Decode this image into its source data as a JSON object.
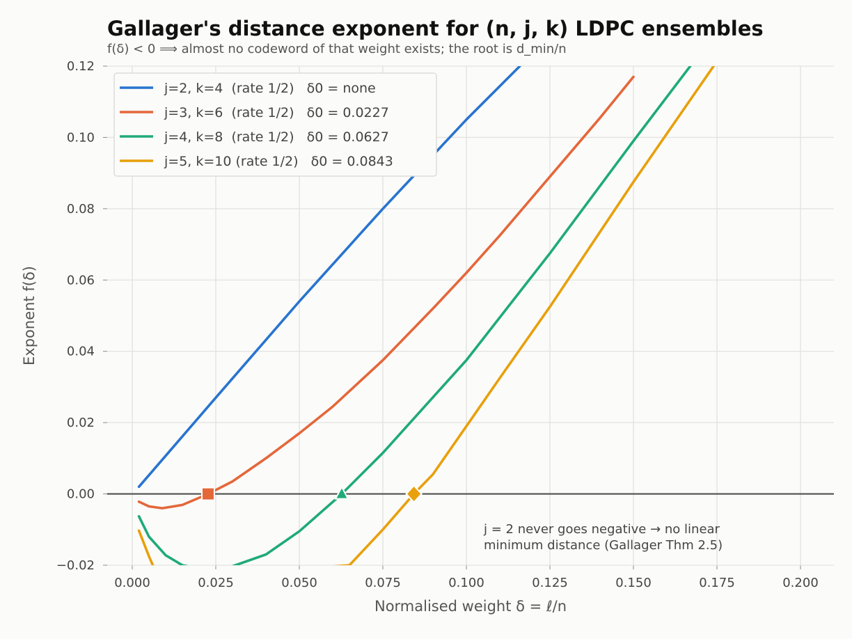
{
  "chart_data": {
    "type": "line",
    "title": "Gallager's distance exponent for (n, j, k) LDPC ensembles",
    "subtitle": "f(δ) < 0 ⟹ almost no codeword of that weight exists; the root is d_min/n",
    "xlabel": "Normalised weight  δ = ℓ/n",
    "ylabel": "Exponent  f(δ)",
    "xlim": [
      -0.0075,
      0.21
    ],
    "ylim": [
      -0.02,
      0.12
    ],
    "xticks": [
      "0.000",
      "0.025",
      "0.050",
      "0.075",
      "0.100",
      "0.125",
      "0.150",
      "0.175",
      "0.200"
    ],
    "yticks": [
      "−0.02",
      "0.00",
      "0.02",
      "0.04",
      "0.06",
      "0.08",
      "0.10",
      "0.12"
    ],
    "grid": true,
    "legend_position": "top-left",
    "series": [
      {
        "name": "j=2, k=4  (rate 1/2)   δ0 = none",
        "color": "#2874d0",
        "x": [
          0.002,
          0.025,
          0.05,
          0.075,
          0.1,
          0.116
        ],
        "y": [
          0.002,
          0.027,
          0.054,
          0.08,
          0.105,
          0.12
        ]
      },
      {
        "name": "j=3, k=6  (rate 1/2)   δ0 = 0.0227",
        "color": "#e4673a",
        "x": [
          0.002,
          0.005,
          0.009,
          0.015,
          0.0227,
          0.03,
          0.04,
          0.05,
          0.06,
          0.075,
          0.09,
          0.1,
          0.11,
          0.125,
          0.14,
          0.15
        ],
        "y": [
          -0.0022,
          -0.0035,
          -0.004,
          -0.0031,
          0.0,
          0.0035,
          0.01,
          0.017,
          0.0245,
          0.0375,
          0.052,
          0.062,
          0.0725,
          0.089,
          0.1055,
          0.117
        ],
        "marker": "square",
        "root": 0.0227
      },
      {
        "name": "j=4, k=8  (rate 1/2)   δ0 = 0.0627",
        "color": "#1faa7a",
        "x": [
          0.002,
          0.005,
          0.01,
          0.015,
          0.02,
          0.025,
          0.03,
          0.04,
          0.05,
          0.0627,
          0.075,
          0.1,
          0.125,
          0.15,
          0.167
        ],
        "y": [
          -0.0063,
          -0.012,
          -0.0172,
          -0.02,
          -0.021,
          -0.021,
          -0.0203,
          -0.017,
          -0.0105,
          0.0,
          0.0115,
          0.0375,
          0.0675,
          0.099,
          0.12
        ],
        "marker": "triangle",
        "root": 0.0627
      },
      {
        "name": "j=5, k=10 (rate 1/2)   δ0 = 0.0843",
        "color": "#e8a00c",
        "x": [
          0.002,
          0.005,
          0.008,
          0.065,
          0.075,
          0.0843,
          0.09,
          0.1,
          0.11,
          0.125,
          0.15,
          0.174
        ],
        "y": [
          -0.0103,
          -0.0175,
          -0.024,
          -0.02,
          -0.01,
          0.0,
          0.0055,
          0.019,
          0.0325,
          0.0525,
          0.0875,
          0.12
        ],
        "marker": "diamond",
        "root": 0.0843
      }
    ],
    "annotations": [
      "j = 2 never goes negative → no linear",
      "minimum distance (Gallager Thm 2.5)"
    ]
  }
}
